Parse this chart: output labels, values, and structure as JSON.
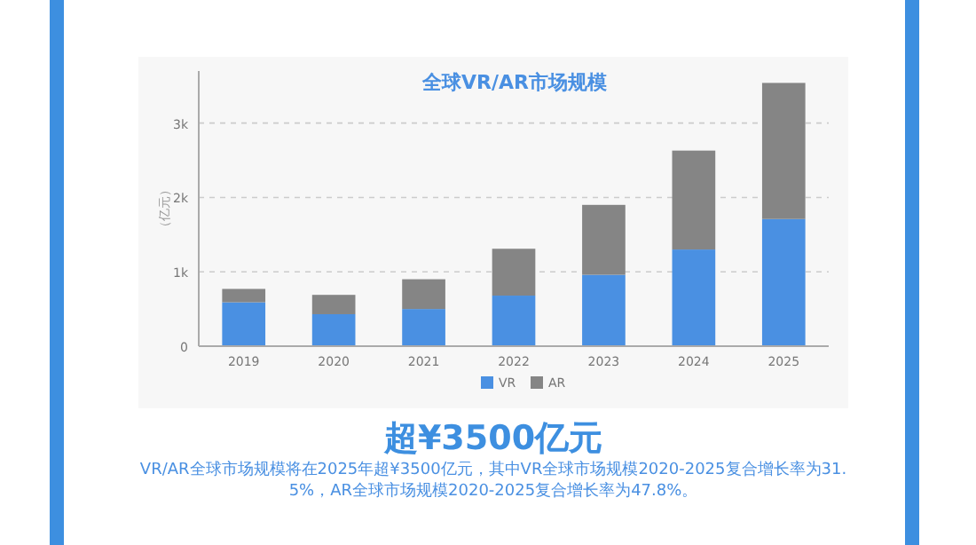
{
  "chart_data": {
    "type": "bar",
    "title": "全球VR/AR市场规模",
    "ylabel": "（亿元）",
    "categories": [
      "2019",
      "2020",
      "2021",
      "2022",
      "2023",
      "2024",
      "2025"
    ],
    "series": [
      {
        "name": "VR",
        "color": "#4a90e2",
        "values": [
          590,
          430,
          500,
          680,
          960,
          1300,
          1710
        ]
      },
      {
        "name": "AR",
        "color": "#858585",
        "values": [
          180,
          260,
          400,
          630,
          940,
          1330,
          1830
        ]
      }
    ],
    "stacked": true,
    "ylim": [
      0,
      3700
    ],
    "yticks": [
      0,
      {
        "value": 1000,
        "label": "1k"
      },
      {
        "value": 2000,
        "label": "2k"
      },
      {
        "value": 3000,
        "label": "3k"
      }
    ],
    "grid": "y",
    "legend": "bottom",
    "annotations": [
      "超¥3500亿元",
      "VR/AR全球市场规模将在2025年超¥3500亿元，其中VR全球市场规模2020-2025复合增长率为31.5%，AR全球市场规模2020-2025复合增长率为47.8%。"
    ]
  }
}
